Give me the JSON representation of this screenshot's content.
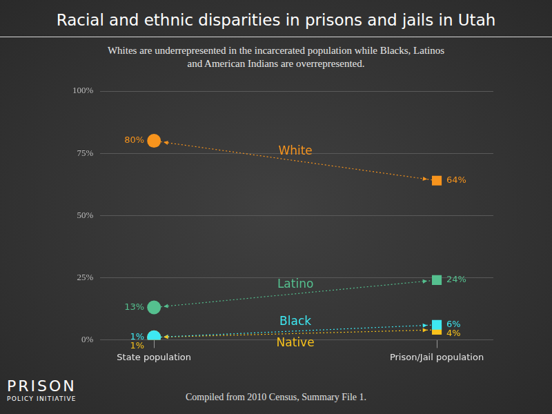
{
  "chart_data": {
    "type": "line",
    "title": "Racial and ethnic disparities in prisons and jails in Utah",
    "subtitle": "Whites are underrepresented in the incarcerated population while Blacks, Latinos and American Indians are overrepresented.",
    "source": "Compiled from 2010 Census, Summary File 1.",
    "logo": [
      "PRISON",
      "POLICY INITIATIVE"
    ],
    "categories": [
      "State population",
      "Prison/Jail population"
    ],
    "series": [
      {
        "name": "White",
        "color": "#f7941d",
        "values": [
          80,
          64
        ],
        "value_labels": [
          "80%",
          "64%"
        ]
      },
      {
        "name": "Latino",
        "color": "#55c08f",
        "values": [
          13,
          24
        ],
        "value_labels": [
          "13%",
          "24%"
        ]
      },
      {
        "name": "Black",
        "color": "#3ee8f2",
        "values": [
          1,
          6
        ],
        "value_labels": [
          "1%",
          "6%"
        ]
      },
      {
        "name": "Native",
        "color": "#f8c21c",
        "values": [
          1,
          4
        ],
        "value_labels": [
          "1%",
          "4%"
        ]
      }
    ],
    "ylim": [
      0,
      100
    ],
    "yticks": [
      {
        "value": 0,
        "label": "0%"
      },
      {
        "value": 25,
        "label": "25%"
      },
      {
        "value": 50,
        "label": "50%"
      },
      {
        "value": 75,
        "label": "75%"
      },
      {
        "value": 100,
        "label": "100%"
      }
    ],
    "grid": true,
    "data_labels": true,
    "line_style": "dotted"
  }
}
